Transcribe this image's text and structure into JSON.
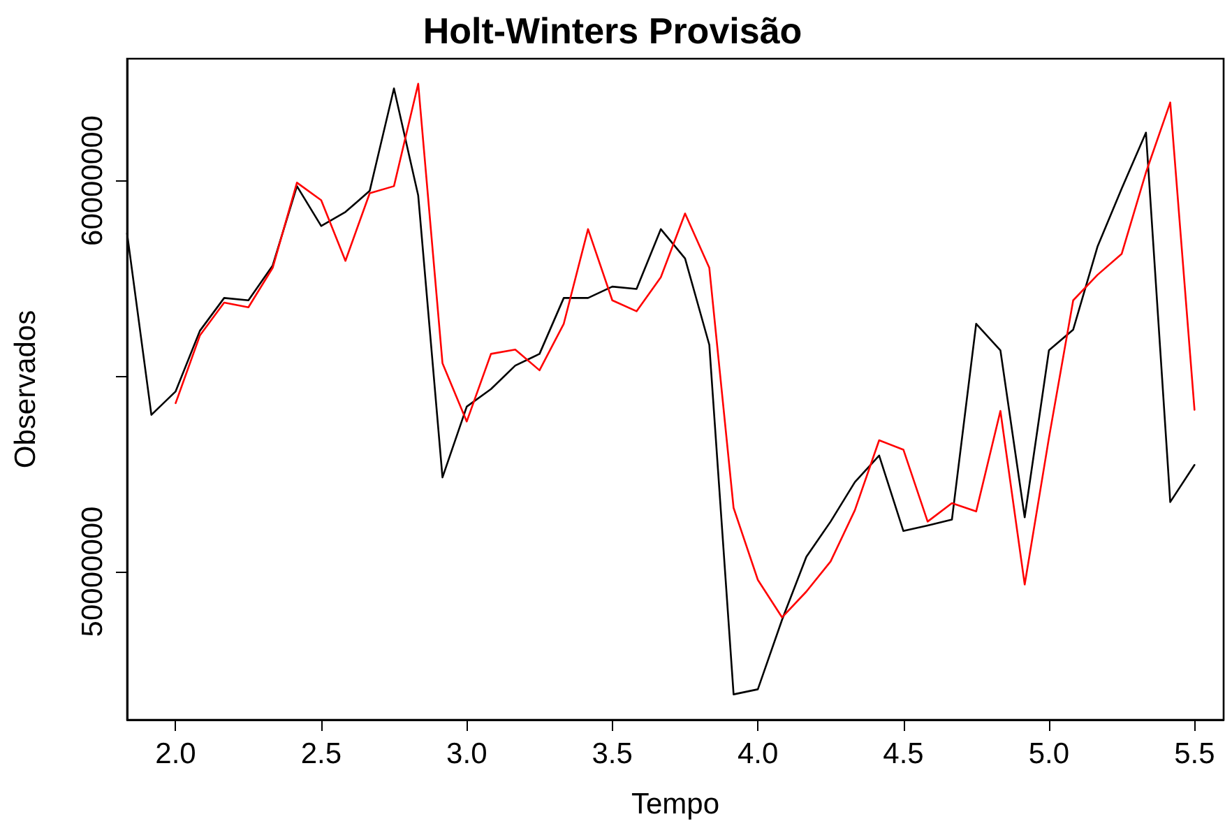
{
  "chart_data": {
    "type": "line",
    "title": "Holt-Winters Provisão",
    "xlabel": "Tempo",
    "ylabel": "Observados",
    "xlim": [
      1.8333,
      5.6
    ],
    "ylim": [
      46210000,
      63120000
    ],
    "xticks": [
      {
        "value": 2,
        "label": "2.0"
      },
      {
        "value": 2.5,
        "label": "2.5"
      },
      {
        "value": 3,
        "label": "3.0"
      },
      {
        "value": 3.5,
        "label": "3.5"
      },
      {
        "value": 4,
        "label": "4.0"
      },
      {
        "value": 4.5,
        "label": "4.5"
      },
      {
        "value": 5,
        "label": "5.0"
      },
      {
        "value": 5.5,
        "label": "5.5"
      }
    ],
    "yticks": [
      50000000,
      {
        "value": 55000000,
        "label": null
      },
      60000000
    ],
    "grid": false,
    "marker": "none",
    "line_style": "solid",
    "series": [
      {
        "color": "#000000",
        "x": [
          1.8333,
          1.9167,
          2,
          2.0833,
          2.1667,
          2.25,
          2.3333,
          2.4167,
          2.5,
          2.5833,
          2.6667,
          2.75,
          2.8333,
          2.9167,
          3,
          3.0833,
          3.1667,
          3.25,
          3.3333,
          3.4167,
          3.5,
          3.5833,
          3.6667,
          3.75,
          3.8333,
          3.9167,
          4,
          4.0833,
          4.1667,
          4.25,
          4.3333,
          4.4167,
          4.5,
          4.5833,
          4.6667,
          4.75,
          4.8333,
          4.9167,
          5,
          5.0833,
          5.1667,
          5.25,
          5.3333,
          5.4167,
          5.5
        ],
        "values": [
          58650000,
          54010000,
          54610000,
          56160000,
          57000000,
          56940000,
          57830000,
          59860000,
          58840000,
          59200000,
          59740000,
          62360000,
          59620000,
          52410000,
          54220000,
          54670000,
          55270000,
          55570000,
          57000000,
          57000000,
          57290000,
          57230000,
          58760000,
          58010000,
          55800000,
          46860000,
          46990000,
          48770000,
          50380000,
          51280000,
          52290000,
          52970000,
          51040000,
          51180000,
          51330000,
          56340000,
          55660000,
          51390000,
          55660000,
          56190000,
          58310000,
          59800000,
          61230000,
          51780000,
          52730000
        ]
      },
      {
        "color": "#ff0000",
        "x": [
          2,
          2.0833,
          2.1667,
          2.25,
          2.3333,
          2.4167,
          2.5,
          2.5833,
          2.6667,
          2.75,
          2.8333,
          2.9167,
          3,
          3.0833,
          3.1667,
          3.25,
          3.3333,
          3.4167,
          3.5,
          3.5833,
          3.6667,
          3.75,
          3.8333,
          3.9167,
          4,
          4.0833,
          4.1667,
          4.25,
          4.3333,
          4.4167,
          4.5,
          4.5833,
          4.6667,
          4.75,
          4.8333,
          4.9167,
          5,
          5.0833,
          5.1667,
          5.25,
          5.3333,
          5.4167,
          5.5
        ],
        "values": [
          54310000,
          56040000,
          56880000,
          56760000,
          57770000,
          59950000,
          59500000,
          57950000,
          59680000,
          59860000,
          62480000,
          55330000,
          53840000,
          55570000,
          55680000,
          55150000,
          56340000,
          58760000,
          56940000,
          56660000,
          57530000,
          59160000,
          57770000,
          51630000,
          49790000,
          48830000,
          49490000,
          50260000,
          51570000,
          53360000,
          53120000,
          51280000,
          51750000,
          51540000,
          54110000,
          49670000,
          53420000,
          56940000,
          57590000,
          58130000,
          60210000,
          62000000,
          54140000
        ]
      }
    ]
  }
}
